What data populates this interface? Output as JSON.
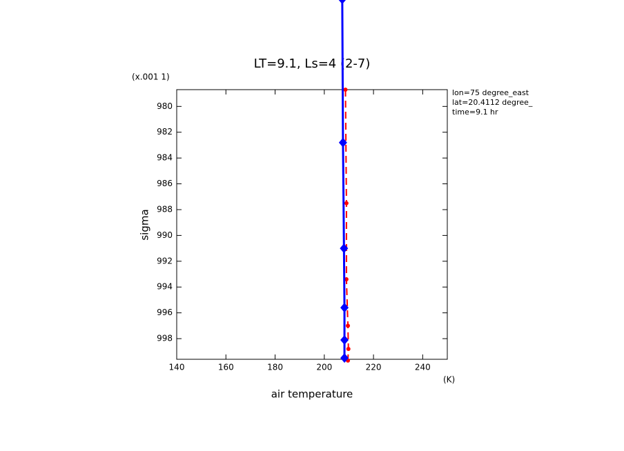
{
  "chart_data": {
    "type": "line",
    "title": "LT=9.1, Ls=4 (2-7)",
    "x_label": "air temperature",
    "x_unit": "(K)",
    "y_label": "sigma",
    "y_scale_label": "(x.001 1)",
    "annotations": [
      "lon=75 degree_east",
      "lat=20.4112 degree_",
      "time=9.1 hr"
    ],
    "xlim": [
      140,
      250
    ],
    "xticks": [
      140,
      160,
      180,
      200,
      220,
      240
    ],
    "ylim": [
      978.7,
      999.6
    ],
    "yticks": [
      980,
      982,
      984,
      986,
      988,
      990,
      992,
      994,
      996,
      998
    ],
    "y_inverted": true,
    "series": [
      {
        "color": "#ff0000",
        "dash": true,
        "marker": "circle",
        "sigma": [
          978.7,
          987.5,
          993.4,
          997.0,
          998.8,
          999.7
        ],
        "values": [
          208.6,
          209.0,
          209.0,
          209.6,
          209.8,
          209.6
        ]
      },
      {
        "color": "#0000ff",
        "dash": false,
        "marker": "diamond",
        "sigma": [
          971.7,
          982.8,
          991.0,
          995.6,
          998.1,
          999.5
        ],
        "values": [
          207.3,
          207.6,
          208.0,
          208.2,
          208.2,
          208.2
        ]
      }
    ]
  }
}
